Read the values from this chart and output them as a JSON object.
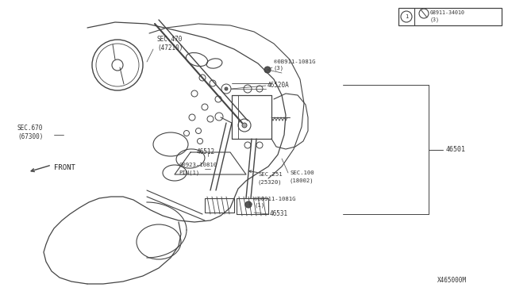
{
  "background_color": "#ffffff",
  "fig_width": 6.4,
  "fig_height": 3.72,
  "dpi": 100,
  "labels": {
    "sec470": "SEC.470\n(47210)",
    "sec670": "SEC.670\n(67300)",
    "bolt_top": "®0B911-1081G\n(3)",
    "part46520A": "46520A",
    "part46512": "46512",
    "pin": "00923-10810\nPIN(1)",
    "sec251": "SEC.251\n(25320)",
    "sec100": "SEC.100\n(18002)",
    "bolt_bot": "®08911-1081G\n(1)",
    "part46531": "46531",
    "part46501": "46501",
    "legend_bolt": "®08911-34010\n(3)",
    "front": "FRONT",
    "diagram_no": "X465000M"
  },
  "lc": "#444444",
  "tc": "#333333"
}
